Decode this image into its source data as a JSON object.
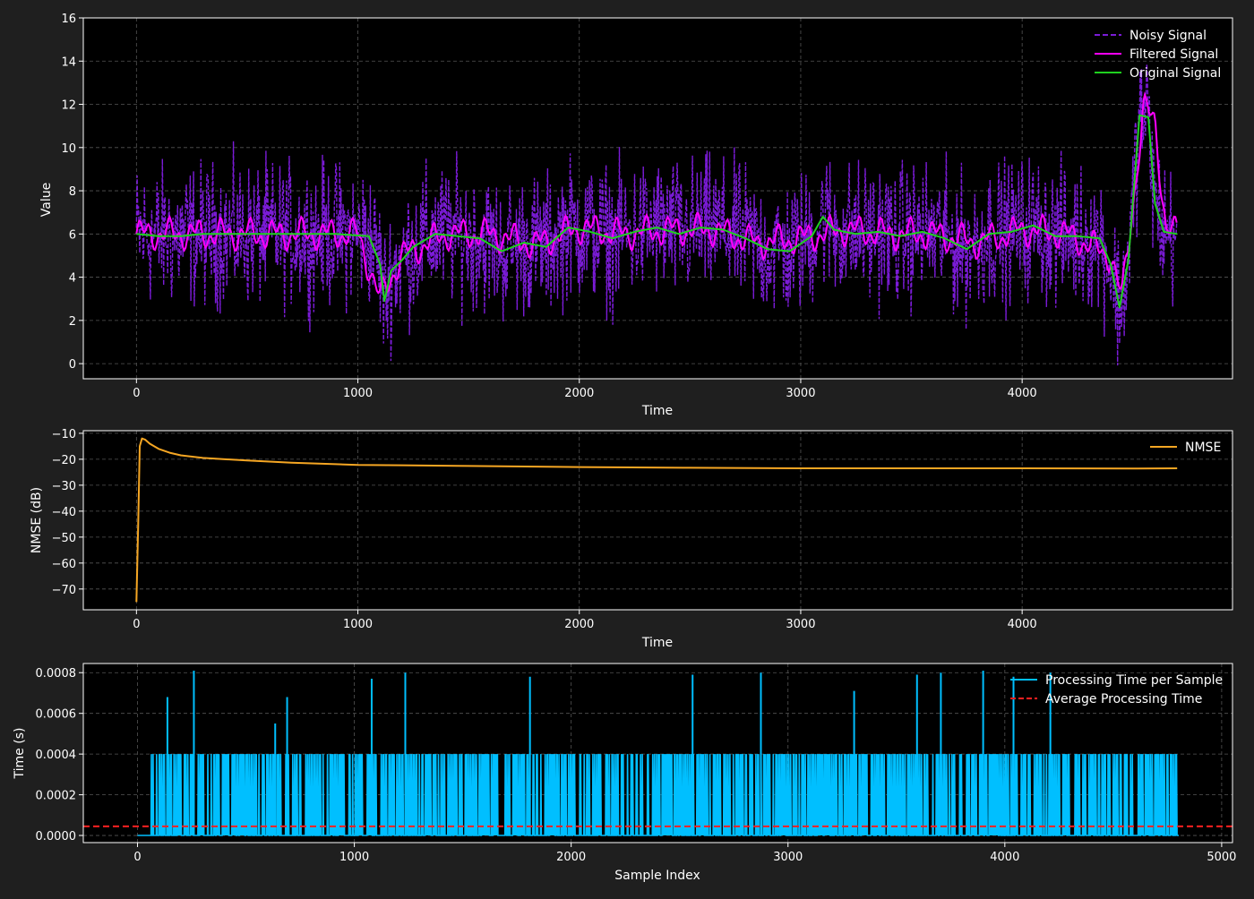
{
  "colors": {
    "background": "#1f1f1f",
    "plot_bg": "#000000",
    "axis": "#ffffff",
    "grid": "#555555",
    "noisy": "#7a1bd6",
    "filtered": "#ff00ff",
    "original": "#1fd11f",
    "nmse": "#f5a623",
    "proc": "#00bfff",
    "avg": "#ff2020"
  },
  "chart_data": [
    {
      "type": "line",
      "title": "",
      "xlabel": "Time",
      "ylabel": "Value",
      "xlim": [
        -240,
        4950
      ],
      "ylim": [
        -0.7,
        16
      ],
      "xticks": [
        0,
        1000,
        2000,
        3000,
        4000
      ],
      "yticks": [
        0,
        2,
        4,
        6,
        8,
        10,
        12,
        14,
        16
      ],
      "grid": true,
      "legend": "top-right",
      "series": [
        {
          "name": "Noisy Signal",
          "style": "dashed",
          "x_range": [
            0,
            4700
          ],
          "description_points": {
            "x": [
              0,
              500,
              1000,
              1100,
              1200,
              1500,
              2000,
              2500,
              3000,
              3500,
              4000,
              4400,
              4450,
              4550,
              4600,
              4700
            ],
            "y": [
              6,
              6,
              6,
              3,
              5,
              6,
              6,
              6,
              6,
              6,
              6,
              3,
              2.6,
              12,
              11.5,
              6
            ]
          },
          "noise_range": [
            -4.5,
            4.5
          ]
        },
        {
          "name": "Filtered Signal",
          "style": "solid",
          "x": [
            0,
            200,
            400,
            600,
            800,
            1000,
            1100,
            1200,
            1400,
            1600,
            1800,
            2000,
            2200,
            2400,
            2600,
            2800,
            3000,
            3200,
            3400,
            3600,
            3800,
            4000,
            4200,
            4400,
            4450,
            4550,
            4600,
            4650,
            4700
          ],
          "y": [
            6,
            6,
            6,
            6,
            6,
            6,
            3,
            5,
            6,
            6,
            5.5,
            6.3,
            6,
            6.2,
            6.2,
            5.6,
            5.8,
            6.2,
            6,
            6,
            5.6,
            6.2,
            6,
            5,
            3,
            11.8,
            11.2,
            6.2,
            6
          ]
        },
        {
          "name": "Original Signal",
          "style": "solid",
          "x": [
            0,
            100,
            200,
            300,
            500,
            700,
            900,
            1050,
            1100,
            1120,
            1150,
            1200,
            1250,
            1350,
            1450,
            1550,
            1650,
            1750,
            1850,
            1950,
            2050,
            2150,
            2250,
            2350,
            2450,
            2550,
            2650,
            2750,
            2850,
            2950,
            3050,
            3100,
            3150,
            3250,
            3350,
            3450,
            3550,
            3650,
            3750,
            3850,
            3950,
            4050,
            4150,
            4250,
            4350,
            4400,
            4440,
            4480,
            4530,
            4570,
            4600,
            4640,
            4700
          ],
          "y": [
            6,
            5.9,
            5.9,
            6,
            6,
            6,
            6,
            5.9,
            4.6,
            2.9,
            4.3,
            4.8,
            5.4,
            6,
            5.9,
            5.8,
            5.2,
            5.6,
            5.4,
            6.3,
            6.1,
            5.8,
            6.1,
            6.3,
            6,
            6.3,
            6.2,
            5.8,
            5.3,
            5.2,
            5.9,
            6.8,
            6.2,
            6,
            6.1,
            5.9,
            6.1,
            5.8,
            5.3,
            6,
            6.1,
            6.4,
            5.9,
            5.9,
            5.8,
            4.6,
            2.6,
            4.8,
            11.5,
            11.4,
            7.4,
            6.1,
            6
          ]
        }
      ]
    },
    {
      "type": "line",
      "title": "",
      "xlabel": "Time",
      "ylabel": "NMSE (dB)",
      "xlim": [
        -240,
        4950
      ],
      "ylim": [
        -78,
        -9
      ],
      "xticks": [
        0,
        1000,
        2000,
        3000,
        4000
      ],
      "yticks": [
        -70,
        -60,
        -50,
        -40,
        -30,
        -20,
        -10
      ],
      "grid": true,
      "legend": "top-right",
      "series": [
        {
          "name": "NMSE",
          "x": [
            0,
            8,
            15,
            25,
            40,
            60,
            100,
            150,
            200,
            300,
            500,
            700,
            900,
            1000,
            1200,
            1500,
            2000,
            2500,
            3000,
            3500,
            4000,
            4500,
            4700
          ],
          "y": [
            -75,
            -45,
            -15,
            -12,
            -12.5,
            -14,
            -16,
            -17.5,
            -18.5,
            -19.5,
            -20.5,
            -21.3,
            -21.9,
            -22.2,
            -22.3,
            -22.6,
            -23,
            -23.3,
            -23.5,
            -23.5,
            -23.5,
            -23.6,
            -23.5
          ]
        }
      ]
    },
    {
      "type": "line",
      "title": "",
      "xlabel": "Sample Index",
      "ylabel": "Time (s)",
      "xlim": [
        -250,
        5050
      ],
      "ylim": [
        -3.5e-05,
        0.000845
      ],
      "xticks": [
        0,
        1000,
        2000,
        3000,
        4000,
        5000
      ],
      "yticks": [
        0.0,
        0.0002,
        0.0004,
        0.0006,
        0.0008
      ],
      "ytick_labels": [
        "0.0000",
        "0.0002",
        "0.0004",
        "0.0006",
        "0.0008"
      ],
      "grid": true,
      "legend": "top-right",
      "series": [
        {
          "name": "Processing Time per Sample",
          "x_range": [
            0,
            4800
          ],
          "levels": [
            0,
            0.0004
          ],
          "spikes": {
            "x": [
              138,
              260,
              635,
              690,
              1080,
              1235,
              1810,
              2560,
              2875,
              3305,
              3595,
              3705,
              3900,
              4040,
              4210
            ],
            "y": [
              0.00068,
              0.00081,
              0.00055,
              0.00068,
              0.00077,
              0.0008,
              0.00078,
              0.00079,
              0.0008,
              0.00071,
              0.00079,
              0.0008,
              0.00081,
              0.00078,
              0.0008
            ]
          }
        },
        {
          "name": "Average Processing Time",
          "style": "dashed",
          "y": 4.5e-05
        }
      ]
    }
  ]
}
